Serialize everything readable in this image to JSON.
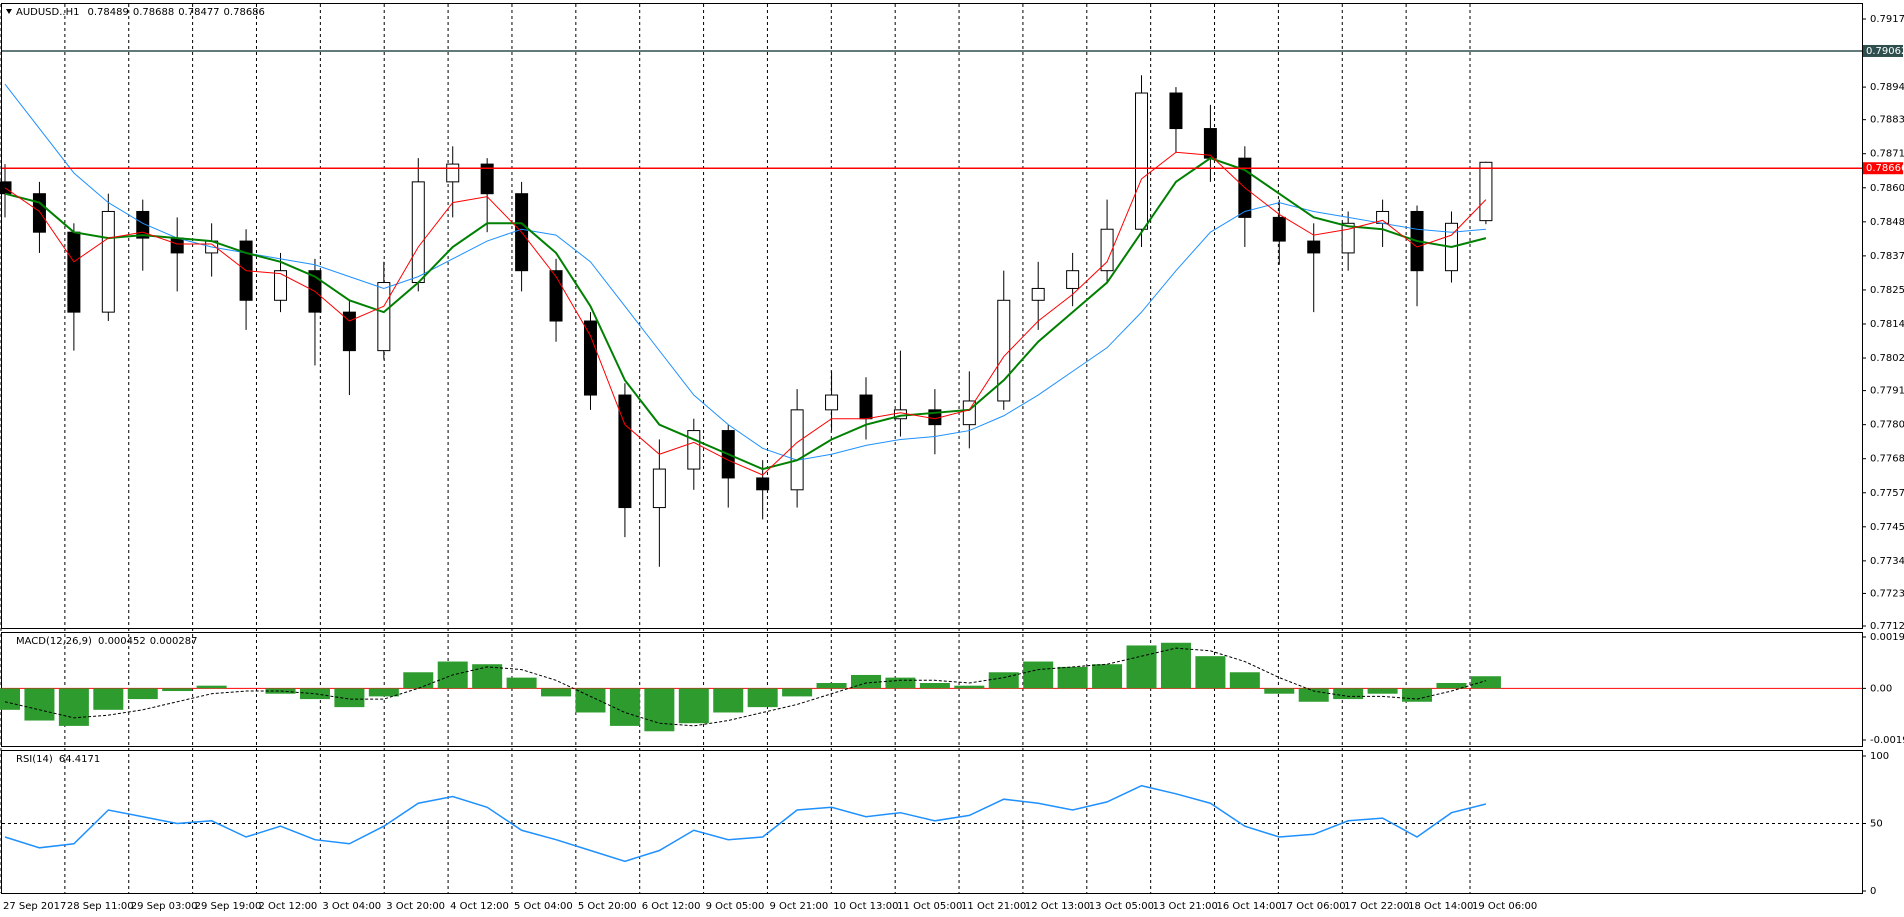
{
  "chart_data": [
    {
      "type": "candlestick",
      "symbol": "AUDUSD..H1",
      "open": [
        0.7862,
        0.7858,
        0.7845,
        0.7818,
        0.7852,
        0.7843,
        0.7838,
        0.7842,
        0.7822,
        0.7832,
        0.7818,
        0.7805,
        0.7828,
        0.7862,
        0.7868,
        0.7858,
        0.7832,
        0.7815,
        0.779,
        0.7752,
        0.7765,
        0.7778,
        0.7762,
        0.7758,
        0.7785,
        0.779,
        0.7782,
        0.7785,
        0.778,
        0.7788,
        0.7822,
        0.7826,
        0.7832,
        0.7846,
        0.7892,
        0.788,
        0.787,
        0.785,
        0.7842,
        0.7838,
        0.7848,
        0.7852,
        0.7832,
        0.78489
      ],
      "high": [
        0.7868,
        0.7862,
        0.7848,
        0.7858,
        0.7856,
        0.785,
        0.7848,
        0.7846,
        0.7838,
        0.7836,
        0.7822,
        0.7835,
        0.787,
        0.7874,
        0.787,
        0.7862,
        0.7836,
        0.7818,
        0.7794,
        0.7775,
        0.7782,
        0.778,
        0.7768,
        0.7792,
        0.7798,
        0.7796,
        0.7805,
        0.7792,
        0.7798,
        0.7832,
        0.7835,
        0.7838,
        0.7856,
        0.7898,
        0.7894,
        0.7888,
        0.7874,
        0.7856,
        0.7848,
        0.7852,
        0.7856,
        0.7854,
        0.7852,
        0.78688
      ],
      "low": [
        0.785,
        0.7838,
        0.7805,
        0.7815,
        0.7832,
        0.7825,
        0.783,
        0.7812,
        0.7818,
        0.78,
        0.779,
        0.7802,
        0.7825,
        0.785,
        0.7845,
        0.7825,
        0.7808,
        0.7785,
        0.7742,
        0.7732,
        0.7758,
        0.7752,
        0.7748,
        0.7752,
        0.7778,
        0.7775,
        0.7776,
        0.777,
        0.7772,
        0.7785,
        0.7812,
        0.782,
        0.7828,
        0.784,
        0.7872,
        0.7862,
        0.784,
        0.7834,
        0.7818,
        0.7832,
        0.784,
        0.782,
        0.7828,
        0.78477
      ],
      "close": [
        0.7858,
        0.7845,
        0.7818,
        0.7852,
        0.7843,
        0.7838,
        0.7842,
        0.7822,
        0.7832,
        0.7818,
        0.7805,
        0.7828,
        0.7862,
        0.7868,
        0.7858,
        0.7832,
        0.7815,
        0.779,
        0.7752,
        0.7765,
        0.7778,
        0.7762,
        0.7758,
        0.7785,
        0.779,
        0.7782,
        0.7785,
        0.778,
        0.7788,
        0.7822,
        0.7826,
        0.7832,
        0.7846,
        0.7892,
        0.788,
        0.787,
        0.785,
        0.7842,
        0.7838,
        0.7848,
        0.7852,
        0.7832,
        0.7848,
        0.78686
      ],
      "series": [
        {
          "color": "#1e90ff",
          "values": [
            0.7895,
            0.788,
            0.7865,
            0.7855,
            0.7848,
            0.7843,
            0.784,
            0.7838,
            0.7836,
            0.7834,
            0.783,
            0.7826,
            0.783,
            0.7836,
            0.7842,
            0.7846,
            0.7844,
            0.7835,
            0.782,
            0.7805,
            0.779,
            0.778,
            0.7772,
            0.7768,
            0.777,
            0.7773,
            0.7775,
            0.7776,
            0.7778,
            0.7783,
            0.779,
            0.7798,
            0.7806,
            0.7818,
            0.7832,
            0.7845,
            0.7852,
            0.7855,
            0.7852,
            0.785,
            0.7848,
            0.7846,
            0.7845,
            0.7846
          ]
        },
        {
          "color": "#008000",
          "values": [
            0.7858,
            0.7855,
            0.7845,
            0.7843,
            0.7844,
            0.7843,
            0.7842,
            0.7838,
            0.7835,
            0.783,
            0.7822,
            0.7818,
            0.7828,
            0.784,
            0.7848,
            0.7848,
            0.7838,
            0.782,
            0.7795,
            0.778,
            0.7775,
            0.777,
            0.7765,
            0.7768,
            0.7775,
            0.778,
            0.7783,
            0.7784,
            0.7785,
            0.7795,
            0.7808,
            0.7818,
            0.7828,
            0.7845,
            0.7862,
            0.787,
            0.7866,
            0.7858,
            0.785,
            0.7847,
            0.7846,
            0.7842,
            0.784,
            0.7843
          ]
        },
        {
          "color": "#ff0000",
          "values": [
            0.786,
            0.7852,
            0.7835,
            0.7843,
            0.7845,
            0.7841,
            0.7841,
            0.7832,
            0.7831,
            0.7825,
            0.7815,
            0.782,
            0.784,
            0.7855,
            0.7857,
            0.7845,
            0.783,
            0.781,
            0.778,
            0.777,
            0.7774,
            0.7768,
            0.7763,
            0.7774,
            0.7782,
            0.7782,
            0.7784,
            0.7782,
            0.7785,
            0.7803,
            0.7815,
            0.7824,
            0.7835,
            0.7863,
            0.7872,
            0.7871,
            0.786,
            0.7851,
            0.7844,
            0.7846,
            0.7849,
            0.784,
            0.7844,
            0.7856
          ]
        }
      ],
      "ylim": [
        0.7712,
        0.7917
      ],
      "yticks": [
        {
          "value": 0.7917,
          "label": "0.79170"
        },
        {
          "value": 0.7894,
          "label": "0.78940"
        },
        {
          "value": 0.7883,
          "label": "0.78830"
        },
        0.78715,
        {
          "value": 0.786,
          "label": "0.78600"
        },
        0.78485,
        {
          "value": 0.7837,
          "label": "0.78370"
        },
        0.78255,
        {
          "value": 0.7814,
          "label": "0.78140"
        },
        0.78025,
        0.77915,
        {
          "value": 0.778,
          "label": "0.77800"
        },
        0.77685,
        {
          "value": 0.7757,
          "label": "0.77570"
        },
        0.77455,
        {
          "value": 0.7734,
          "label": "0.77340"
        },
        {
          "value": 0.7723,
          "label": "0.77230"
        },
        {
          "value": 0.7712,
          "label": "0.77120"
        }
      ],
      "price_lines": [
        {
          "value": 0.79062,
          "color": "#2f4f4f"
        },
        {
          "value": 0.78666,
          "color": "#ff0000"
        }
      ],
      "x_labels": [
        "27 Sep 2017",
        "28 Sep 11:00",
        "29 Sep 03:00",
        "29 Sep 19:00",
        "2 Oct 12:00",
        "3 Oct 04:00",
        "3 Oct 20:00",
        "4 Oct 12:00",
        "5 Oct 04:00",
        "5 Oct 20:00",
        "6 Oct 12:00",
        "9 Oct 05:00",
        "9 Oct 21:00",
        "10 Oct 13:00",
        "11 Oct 05:00",
        "11 Oct 21:00",
        "12 Oct 13:00",
        "13 Oct 05:00",
        "13 Oct 21:00",
        "16 Oct 14:00",
        "17 Oct 06:00",
        "17 Oct 22:00",
        "18 Oct 14:00",
        "19 Oct 06:00"
      ]
    },
    {
      "type": "macd",
      "name": "MACD(12,26,9)",
      "color": "#2e9b2e",
      "values": [
        -0.0008,
        -0.0012,
        -0.0014,
        -0.0008,
        -0.0004,
        -0.0001,
        0.0001,
        0,
        -0.0002,
        -0.0004,
        -0.0007,
        -0.0003,
        0.0006,
        0.001,
        0.0009,
        0.0004,
        -0.0003,
        -0.0009,
        -0.0014,
        -0.0016,
        -0.0013,
        -0.0009,
        -0.0007,
        -0.0003,
        0.0002,
        0.0005,
        0.0004,
        0.0002,
        0.0001,
        0.0006,
        0.001,
        0.0008,
        0.0009,
        0.0016,
        0.0017,
        0.0012,
        0.0006,
        -0.0002,
        -0.0005,
        -0.0004,
        -0.0002,
        -0.0005,
        0.0002,
        0.000452
      ],
      "signal": [
        -0.0005,
        -0.0008,
        -0.0011,
        -0.001,
        -0.0008,
        -0.0005,
        -0.0002,
        -0.0001,
        -0.0001,
        -0.0002,
        -0.0004,
        -0.0004,
        0,
        0.0005,
        0.0008,
        0.0007,
        0.0003,
        -0.0003,
        -0.0009,
        -0.0013,
        -0.0014,
        -0.0012,
        -0.0009,
        -0.0006,
        -0.0002,
        0.0002,
        0.0003,
        0.0003,
        0.0002,
        0.0004,
        0.0007,
        0.0008,
        0.0009,
        0.0012,
        0.0015,
        0.0014,
        0.001,
        0.0004,
        -0.0001,
        -0.0003,
        -0.0003,
        -0.0004,
        -0.0001,
        0.000287
      ],
      "ylim": [
        -0.001926,
        0.001915
      ],
      "yticks": [
        0.001915,
        {
          "value": 0,
          "label": "0.00"
        },
        -0.001926
      ]
    },
    {
      "type": "rsi",
      "name": "RSI(14)",
      "color": "#1e90ff",
      "values": [
        40,
        32,
        35,
        60,
        55,
        50,
        52,
        40,
        48,
        38,
        35,
        48,
        65,
        70,
        62,
        45,
        38,
        30,
        22,
        30,
        45,
        38,
        40,
        60,
        62,
        55,
        58,
        52,
        56,
        68,
        65,
        60,
        66,
        78,
        72,
        65,
        48,
        40,
        42,
        52,
        54,
        40,
        58,
        64.4171
      ],
      "ylim": [
        0,
        100
      ],
      "yticks": [
        100,
        50,
        0
      ],
      "level": 50
    }
  ]
}
